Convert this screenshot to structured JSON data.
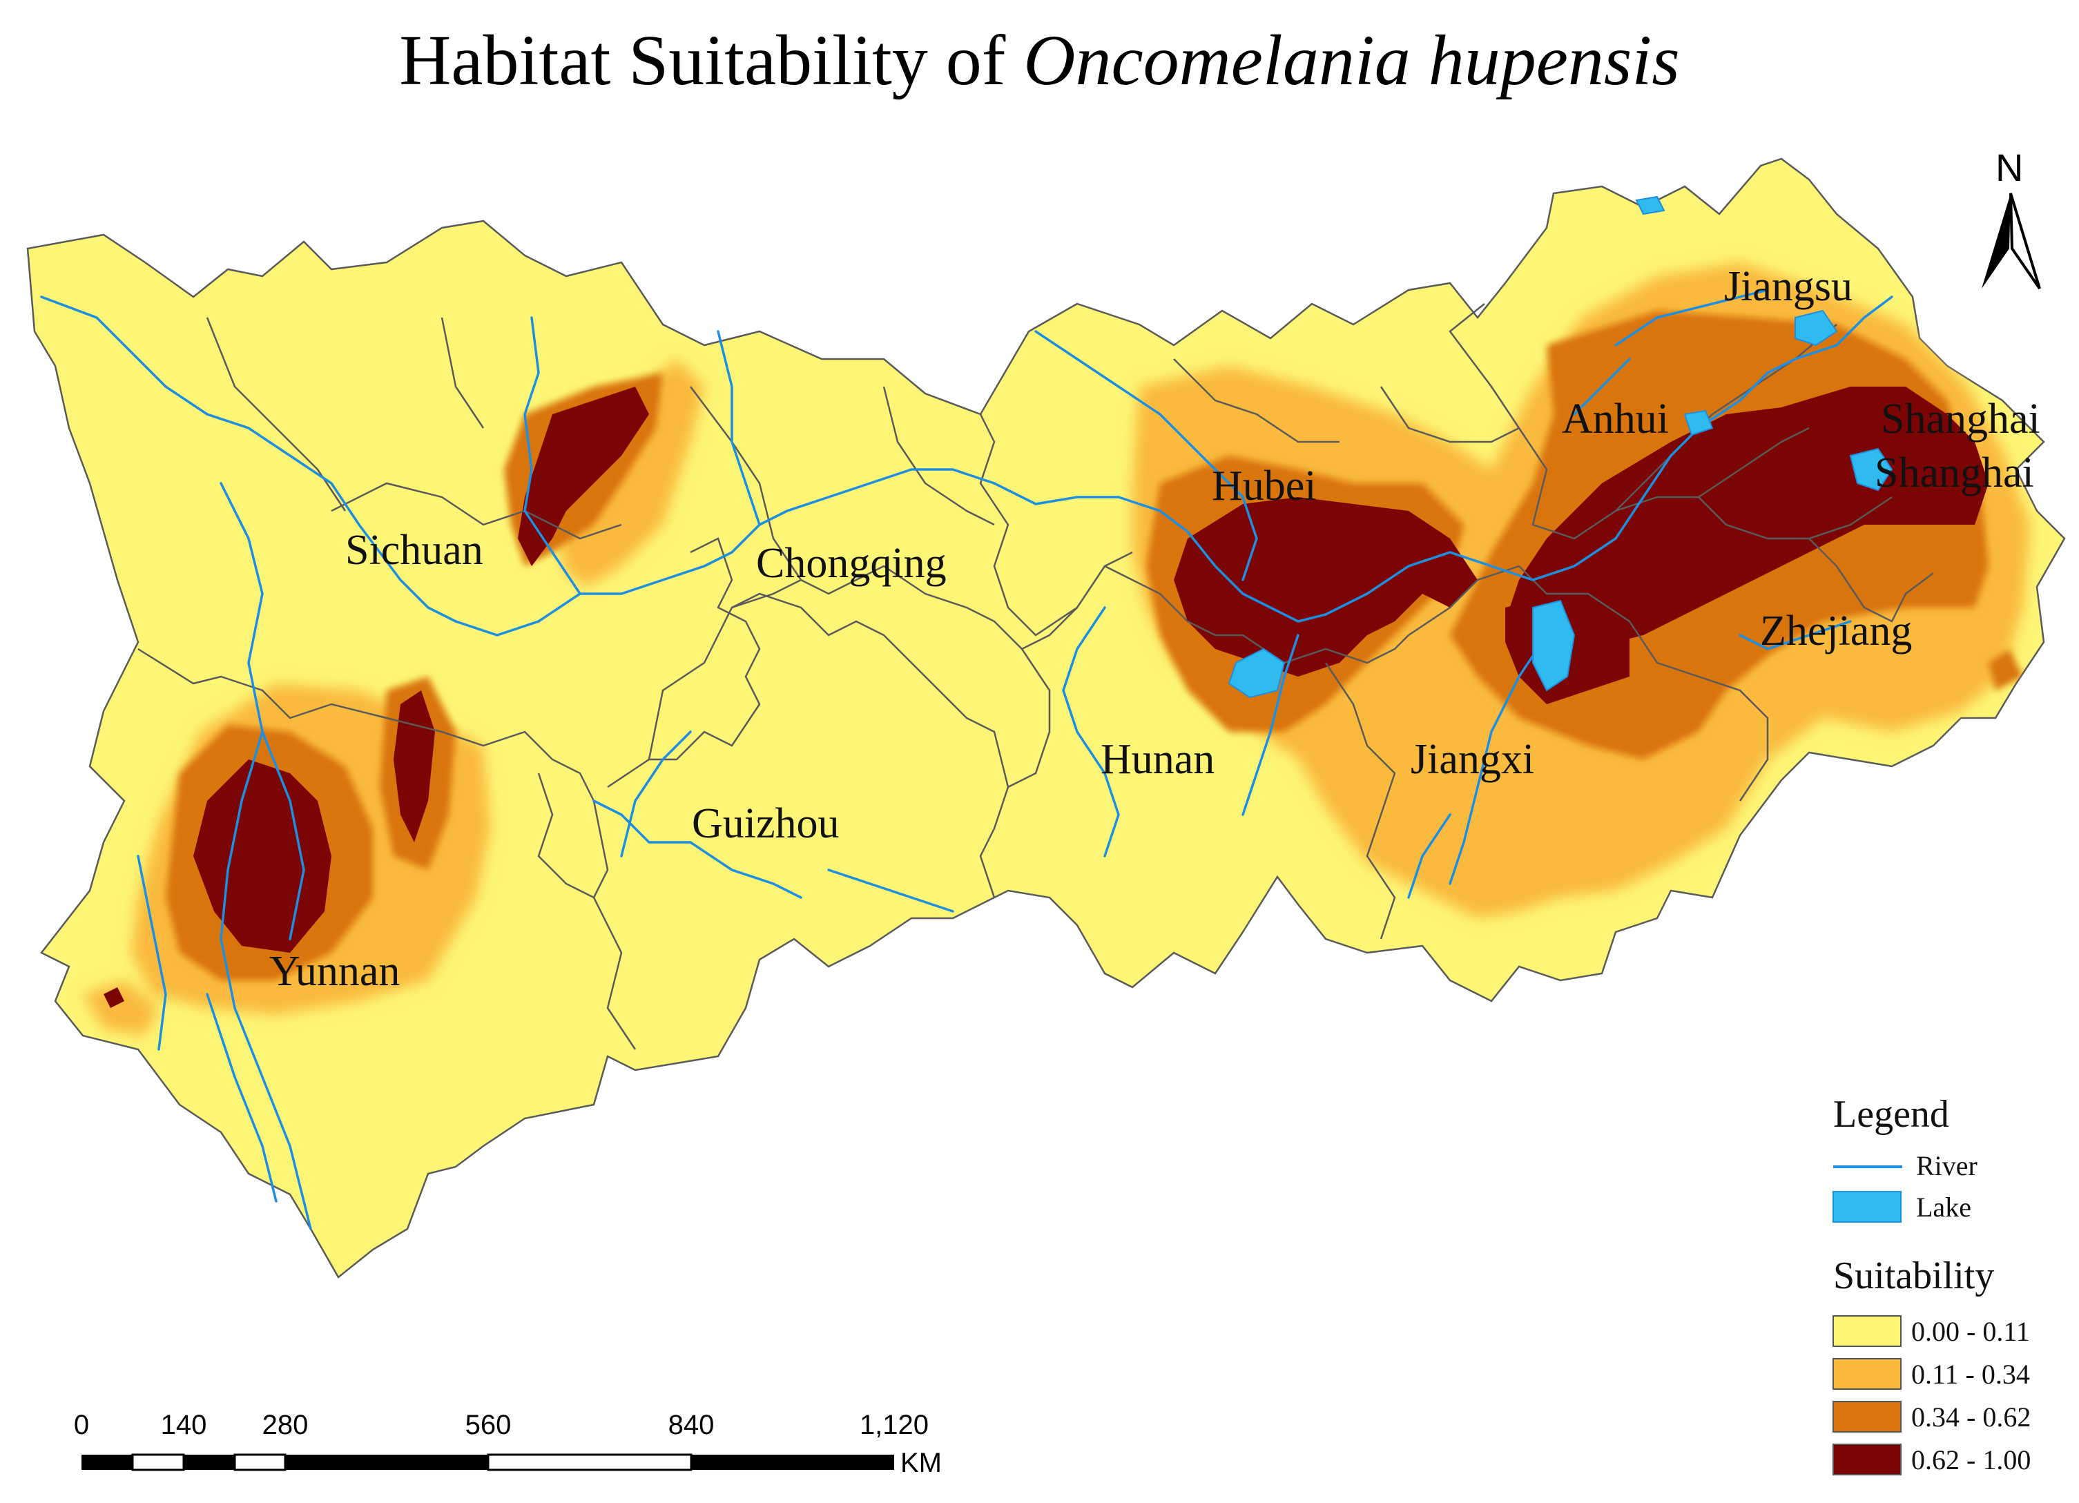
{
  "title": {
    "prefix": "Habitat Suitability of",
    "species": "Oncomelania hupensis"
  },
  "colors": {
    "suitability_0": "#fdf576",
    "suitability_1": "#f9ba3c",
    "suitability_2": "#d9740e",
    "suitability_3": "#7b0404",
    "river": "#1e8fe0",
    "lake": "#2fbbf0",
    "border": "#5a5a5a"
  },
  "provinces": [
    "Sichuan",
    "Chongqing",
    "Guizhou",
    "Yunnan",
    "Hubei",
    "Hunan",
    "Jiangxi",
    "Anhui",
    "Jiangsu",
    "Zhejiang",
    "Shanghai",
    "Shanghai"
  ],
  "north_arrow": {
    "label": "N"
  },
  "legend": {
    "title": "Legend",
    "river_label": "River",
    "lake_label": "Lake",
    "suitability_title": "Suitability",
    "classes": [
      "0.00 - 0.11",
      "0.11 - 0.34",
      "0.34 - 0.62",
      "0.62 - 1.00"
    ]
  },
  "scale_bar": {
    "ticks": [
      "0",
      "140",
      "280",
      "560",
      "840",
      "1,120"
    ],
    "unit": "KM"
  }
}
